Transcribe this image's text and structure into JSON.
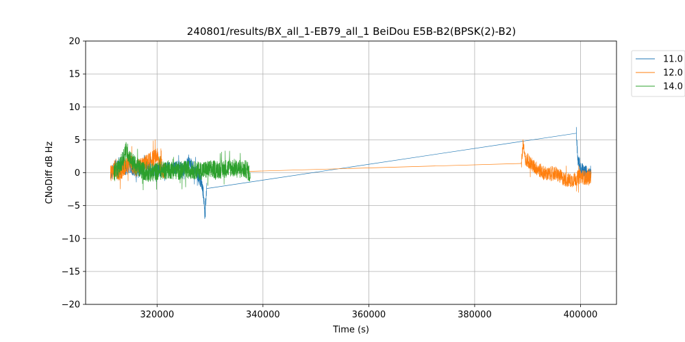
{
  "chart_data": {
    "type": "line",
    "title": "240801/results/BX_all_1-EB79_all_1 BeiDou E5B-B2(BPSK(2)-B2)",
    "xlabel": "Time (s)",
    "ylabel": "CNoDiff dB Hz",
    "xlim": [
      306500,
      406800
    ],
    "ylim": [
      -20,
      20
    ],
    "xticks": [
      320000,
      340000,
      360000,
      380000,
      400000
    ],
    "xtick_labels": [
      "320000",
      "340000",
      "360000",
      "380000",
      "400000"
    ],
    "yticks": [
      -20,
      -15,
      -10,
      -5,
      0,
      5,
      10,
      15,
      20
    ],
    "ytick_labels": [
      "−20",
      "−15",
      "−10",
      "−5",
      "0",
      "5",
      "10",
      "15",
      "20"
    ],
    "grid": true,
    "legend_position": "outside-top-right",
    "series": [
      {
        "name": "11.0",
        "color": "#1f77b4",
        "segments": [
          {
            "x": [
              311200,
              312000,
              313000,
              314000,
              315000,
              316000,
              317000,
              318000,
              319000,
              320000,
              321000,
              322000,
              323000,
              324000,
              325000,
              326000,
              327000,
              327500,
              328000,
              328500,
              328800,
              329000,
              329200,
              329400
            ],
            "y": [
              -0.5,
              1.0,
              1.5,
              0.5,
              1.0,
              0.0,
              0.5,
              1.0,
              0.5,
              0.5,
              0.3,
              0.8,
              0.5,
              1.0,
              0.5,
              1.5,
              0.5,
              0.0,
              -1.0,
              -2.0,
              -3.5,
              -6.5,
              -4.0,
              -2.4
            ],
            "noise": 1.0
          },
          {
            "x": [
              329400,
              399200
            ],
            "y": [
              -2.4,
              6.0
            ],
            "noise": 0
          },
          {
            "x": [
              399200,
              399500,
              400000,
              400500,
              401000,
              401500,
              402000
            ],
            "y": [
              6.0,
              2.0,
              0.8,
              0.3,
              0.2,
              -0.5,
              0.2
            ],
            "noise": 1.0
          }
        ]
      },
      {
        "name": "12.0",
        "color": "#ff7f0e",
        "segments": [
          {
            "x": [
              311200,
              312000,
              313000,
              314000,
              315000,
              316000,
              317000,
              318000,
              319000,
              320000,
              320500,
              321000,
              321500
            ],
            "y": [
              0.0,
              0.5,
              0.0,
              1.0,
              1.5,
              0.5,
              1.0,
              1.5,
              2.0,
              2.5,
              1.5,
              0.5,
              0.0
            ],
            "noise": 1.3
          },
          {
            "x": [
              337200,
              388800
            ],
            "y": [
              0.2,
              1.4
            ],
            "noise": 0
          },
          {
            "x": [
              388800,
              389200,
              389600,
              390000,
              391000,
              392000,
              393000,
              394000,
              395000,
              396000,
              397000,
              398000,
              399000,
              400000,
              401000,
              402000
            ],
            "y": [
              1.4,
              4.5,
              1.5,
              2.0,
              1.0,
              0.5,
              0.0,
              -0.3,
              0.0,
              -0.5,
              -1.0,
              -1.2,
              -1.0,
              -0.5,
              -0.8,
              -0.6
            ],
            "noise": 1.1
          }
        ]
      },
      {
        "name": "14.0",
        "color": "#2ca02c",
        "segments": [
          {
            "x": [
              311800,
              312500,
              313000,
              313500,
              314000,
              314500,
              315000,
              316000,
              317000,
              318000,
              319000,
              320000,
              322000,
              324000,
              326000,
              328000,
              330000,
              332000,
              334000,
              336000,
              337000,
              337600
            ],
            "y": [
              0.0,
              0.5,
              1.0,
              2.0,
              3.5,
              3.0,
              2.0,
              1.0,
              0.5,
              0.0,
              0.0,
              0.2,
              0.5,
              0.3,
              0.5,
              0.3,
              0.5,
              0.5,
              0.8,
              0.5,
              0.5,
              -0.5
            ],
            "noise": 1.4
          }
        ]
      }
    ]
  }
}
